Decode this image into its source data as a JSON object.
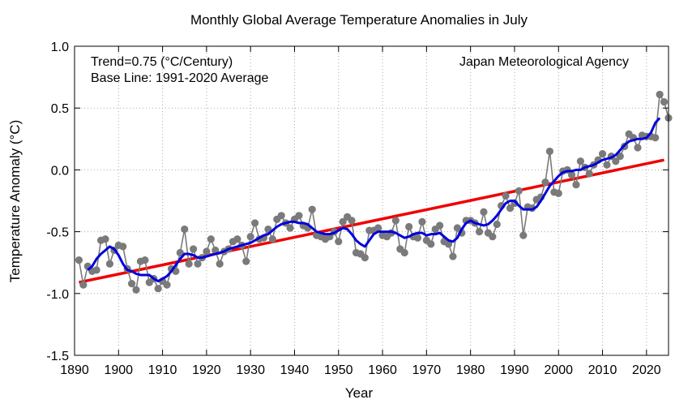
{
  "chart_data": {
    "type": "line",
    "title": "Monthly Global Average Temperature Anomalies in July",
    "xlabel": "Year",
    "ylabel": "Temperature Anomaly (°C)",
    "xlim": [
      1890,
      2025
    ],
    "ylim": [
      -1.5,
      1.0
    ],
    "xticks": [
      1890,
      1900,
      1910,
      1920,
      1930,
      1940,
      1950,
      1960,
      1970,
      1980,
      1990,
      2000,
      2010,
      2020
    ],
    "yticks": [
      -1.5,
      -1.0,
      -0.5,
      0.0,
      0.5,
      1.0
    ],
    "xtick_labels": [
      "1890",
      "1900",
      "1910",
      "1920",
      "1930",
      "1940",
      "1950",
      "1960",
      "1970",
      "1980",
      "1990",
      "2000",
      "2010",
      "2020"
    ],
    "ytick_labels": [
      "-1.5",
      "-1.0",
      "-0.5",
      "0.0",
      "0.5",
      "1.0"
    ],
    "grid": true,
    "annotations": {
      "trend": "Trend=0.75 (°C/Century)",
      "baseline": "Base Line: 1991-2020 Average",
      "source": "Japan Meteorological Agency"
    },
    "colors": {
      "annual": "#7a7a7a",
      "moving_average": "#0000dd",
      "trend": "#ee0000",
      "grid": "#aaaaaa"
    },
    "x": [
      1891,
      1892,
      1893,
      1894,
      1895,
      1896,
      1897,
      1898,
      1899,
      1900,
      1901,
      1902,
      1903,
      1904,
      1905,
      1906,
      1907,
      1908,
      1909,
      1910,
      1911,
      1912,
      1913,
      1914,
      1915,
      1916,
      1917,
      1918,
      1919,
      1920,
      1921,
      1922,
      1923,
      1924,
      1925,
      1926,
      1927,
      1928,
      1929,
      1930,
      1931,
      1932,
      1933,
      1934,
      1935,
      1936,
      1937,
      1938,
      1939,
      1940,
      1941,
      1942,
      1943,
      1944,
      1945,
      1946,
      1947,
      1948,
      1949,
      1950,
      1951,
      1952,
      1953,
      1954,
      1955,
      1956,
      1957,
      1958,
      1959,
      1960,
      1961,
      1962,
      1963,
      1964,
      1965,
      1966,
      1967,
      1968,
      1969,
      1970,
      1971,
      1972,
      1973,
      1974,
      1975,
      1976,
      1977,
      1978,
      1979,
      1980,
      1981,
      1982,
      1983,
      1984,
      1985,
      1986,
      1987,
      1988,
      1989,
      1990,
      1991,
      1992,
      1993,
      1994,
      1995,
      1996,
      1997,
      1998,
      1999,
      2000,
      2001,
      2002,
      2003,
      2004,
      2005,
      2006,
      2007,
      2008,
      2009,
      2010,
      2011,
      2012,
      2013,
      2014,
      2015,
      2016,
      2017,
      2018,
      2019,
      2020,
      2021,
      2022,
      2023,
      2024,
      2025
    ],
    "series": [
      {
        "role": "annual",
        "values": [
          -0.73,
          -0.93,
          -0.78,
          -0.82,
          -0.81,
          -0.57,
          -0.56,
          -0.76,
          -0.65,
          -0.61,
          -0.62,
          -0.8,
          -0.92,
          -0.97,
          -0.74,
          -0.73,
          -0.91,
          -0.88,
          -0.96,
          -0.9,
          -0.93,
          -0.8,
          -0.82,
          -0.67,
          -0.48,
          -0.76,
          -0.64,
          -0.76,
          -0.71,
          -0.66,
          -0.56,
          -0.65,
          -0.76,
          -0.66,
          -0.64,
          -0.58,
          -0.56,
          -0.61,
          -0.74,
          -0.54,
          -0.43,
          -0.56,
          -0.55,
          -0.48,
          -0.56,
          -0.4,
          -0.37,
          -0.43,
          -0.47,
          -0.4,
          -0.37,
          -0.45,
          -0.47,
          -0.32,
          -0.53,
          -0.54,
          -0.56,
          -0.54,
          -0.5,
          -0.58,
          -0.42,
          -0.38,
          -0.41,
          -0.67,
          -0.68,
          -0.71,
          -0.49,
          -0.49,
          -0.47,
          -0.53,
          -0.54,
          -0.51,
          -0.41,
          -0.64,
          -0.67,
          -0.46,
          -0.54,
          -0.55,
          -0.42,
          -0.57,
          -0.6,
          -0.48,
          -0.45,
          -0.58,
          -0.6,
          -0.7,
          -0.47,
          -0.51,
          -0.41,
          -0.41,
          -0.43,
          -0.5,
          -0.34,
          -0.51,
          -0.54,
          -0.44,
          -0.29,
          -0.21,
          -0.31,
          -0.27,
          -0.17,
          -0.53,
          -0.3,
          -0.31,
          -0.24,
          -0.22,
          -0.1,
          0.15,
          -0.18,
          -0.19,
          -0.01,
          0.0,
          -0.04,
          -0.12,
          0.07,
          0.02,
          -0.03,
          0.04,
          0.08,
          0.13,
          0.04,
          0.11,
          0.07,
          0.11,
          0.19,
          0.29,
          0.26,
          0.18,
          0.28,
          0.27,
          0.27,
          0.26,
          0.61,
          0.55,
          0.42
        ]
      },
      {
        "role": "moving_average",
        "x": [
          1893,
          1894,
          1895,
          1896,
          1897,
          1898,
          1899,
          1900,
          1901,
          1902,
          1903,
          1904,
          1905,
          1906,
          1907,
          1908,
          1909,
          1910,
          1911,
          1912,
          1913,
          1914,
          1915,
          1916,
          1917,
          1918,
          1919,
          1920,
          1921,
          1922,
          1923,
          1924,
          1925,
          1926,
          1927,
          1928,
          1929,
          1930,
          1931,
          1932,
          1933,
          1934,
          1935,
          1936,
          1937,
          1938,
          1939,
          1940,
          1941,
          1942,
          1943,
          1944,
          1945,
          1946,
          1947,
          1948,
          1949,
          1950,
          1951,
          1952,
          1953,
          1954,
          1955,
          1956,
          1957,
          1958,
          1959,
          1960,
          1961,
          1962,
          1963,
          1964,
          1965,
          1966,
          1967,
          1968,
          1969,
          1970,
          1971,
          1972,
          1973,
          1974,
          1975,
          1976,
          1977,
          1978,
          1979,
          1980,
          1981,
          1982,
          1983,
          1984,
          1985,
          1986,
          1987,
          1988,
          1989,
          1990,
          1991,
          1992,
          1993,
          1994,
          1995,
          1996,
          1997,
          1998,
          1999,
          2000,
          2001,
          2002,
          2003,
          2004,
          2005,
          2006,
          2007,
          2008,
          2009,
          2010,
          2011,
          2012,
          2013,
          2014,
          2015,
          2016,
          2017,
          2018,
          2019,
          2020,
          2021,
          2022,
          2023
        ],
        "values": [
          -0.81,
          -0.78,
          -0.72,
          -0.68,
          -0.65,
          -0.62,
          -0.64,
          -0.69,
          -0.76,
          -0.81,
          -0.82,
          -0.84,
          -0.85,
          -0.85,
          -0.85,
          -0.88,
          -0.9,
          -0.88,
          -0.86,
          -0.82,
          -0.77,
          -0.72,
          -0.68,
          -0.68,
          -0.69,
          -0.71,
          -0.71,
          -0.7,
          -0.69,
          -0.68,
          -0.67,
          -0.66,
          -0.64,
          -0.63,
          -0.62,
          -0.61,
          -0.6,
          -0.59,
          -0.57,
          -0.55,
          -0.53,
          -0.52,
          -0.49,
          -0.46,
          -0.44,
          -0.43,
          -0.42,
          -0.42,
          -0.43,
          -0.43,
          -0.44,
          -0.47,
          -0.5,
          -0.51,
          -0.52,
          -0.52,
          -0.51,
          -0.49,
          -0.47,
          -0.48,
          -0.52,
          -0.57,
          -0.6,
          -0.62,
          -0.57,
          -0.52,
          -0.5,
          -0.5,
          -0.5,
          -0.5,
          -0.51,
          -0.53,
          -0.55,
          -0.54,
          -0.52,
          -0.51,
          -0.51,
          -0.53,
          -0.52,
          -0.52,
          -0.51,
          -0.54,
          -0.57,
          -0.58,
          -0.55,
          -0.48,
          -0.43,
          -0.41,
          -0.43,
          -0.44,
          -0.45,
          -0.44,
          -0.41,
          -0.37,
          -0.32,
          -0.27,
          -0.25,
          -0.25,
          -0.29,
          -0.32,
          -0.32,
          -0.32,
          -0.3,
          -0.25,
          -0.19,
          -0.13,
          -0.09,
          -0.05,
          -0.02,
          -0.01,
          -0.01,
          0.0,
          0.0,
          0.02,
          0.03,
          0.04,
          0.06,
          0.08,
          0.09,
          0.1,
          0.12,
          0.16,
          0.2,
          0.23,
          0.24,
          0.25,
          0.25,
          0.26,
          0.3,
          0.38,
          0.42
        ]
      },
      {
        "role": "trend",
        "x": [
          1891,
          2024
        ],
        "values": [
          -0.91,
          0.08
        ]
      }
    ]
  }
}
